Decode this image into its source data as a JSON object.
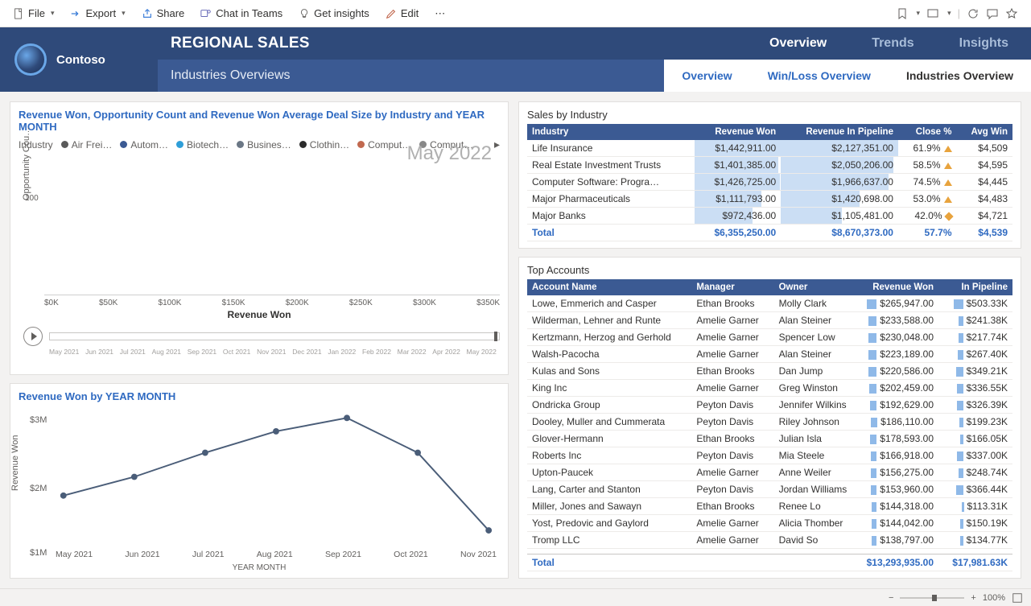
{
  "toolbar": {
    "file": "File",
    "export": "Export",
    "share": "Share",
    "chat": "Chat in Teams",
    "insights": "Get insights",
    "edit": "Edit"
  },
  "brand": "Contoso",
  "page_title": "REGIONAL SALES",
  "subtitle": "Industries Overviews",
  "nav_tabs": [
    "Overview",
    "Trends",
    "Insights"
  ],
  "nav_active": 0,
  "sub_tabs": [
    "Overview",
    "Win/Loss Overview",
    "Industries Overview"
  ],
  "sub_active": 2,
  "scatter": {
    "title": "Revenue Won, Opportunity Count and Revenue Won Average Deal Size by Industry and YEAR MONTH",
    "legend_label": "Industry",
    "legend": [
      {
        "label": "Air Frei…",
        "color": "#5a5a5a"
      },
      {
        "label": "Autom…",
        "color": "#3b5a93"
      },
      {
        "label": "Biotech…",
        "color": "#2f9ed8"
      },
      {
        "label": "Busines…",
        "color": "#6b7785"
      },
      {
        "label": "Clothin…",
        "color": "#2b2b2b"
      },
      {
        "label": "Comput…",
        "color": "#c1694f"
      },
      {
        "label": "Comput…",
        "color": "#888888"
      }
    ],
    "watermark": "May 2022",
    "yaxis": "Opportunity Cou…",
    "yticks": [
      {
        "v": 100,
        "pos": 30
      }
    ],
    "xaxis": "Revenue Won",
    "xticks": [
      "$0K",
      "$50K",
      "$100K",
      "$150K",
      "$200K",
      "$250K",
      "$300K",
      "$350K"
    ],
    "timeline": [
      "May 2021",
      "Jun 2021",
      "Jul 2021",
      "Aug 2021",
      "Sep 2021",
      "Oct 2021",
      "Nov 2021",
      "Dec 2021",
      "Jan 2022",
      "Feb 2022",
      "Mar 2022",
      "Apr 2022",
      "May 2022"
    ]
  },
  "line": {
    "title": "Revenue Won by YEAR MONTH",
    "yaxis": "Revenue Won",
    "yticks": [
      {
        "label": "$3M",
        "y": 10
      },
      {
        "label": "$2M",
        "y": 95
      },
      {
        "label": "$1M",
        "y": 175
      }
    ],
    "xaxis": "YEAR MONTH",
    "categories": [
      "May 2021",
      "Jun 2021",
      "Jul 2021",
      "Aug 2021",
      "Sep 2021",
      "Oct 2021",
      "Nov 2021"
    ],
    "values": [
      1.35,
      1.7,
      2.15,
      2.55,
      2.8,
      2.15,
      0.7
    ],
    "ylim": [
      0.5,
      3.0
    ],
    "color": "#4a5d78",
    "marker_color": "#4a5d78"
  },
  "industry_table": {
    "title": "Sales by Industry",
    "columns": [
      "Industry",
      "Revenue Won",
      "Revenue In Pipeline",
      "Close %",
      "Avg Win"
    ],
    "rows": [
      {
        "industry": "Life Insurance",
        "won": "$1,442,911.00",
        "won_pct": 100,
        "pipe": "$2,127,351.00",
        "pipe_pct": 100,
        "close": "61.9%",
        "icon": "tri",
        "avg": "$4,509"
      },
      {
        "industry": "Real Estate Investment Trusts",
        "won": "$1,401,385.00",
        "won_pct": 97,
        "pipe": "$2,050,206.00",
        "pipe_pct": 96,
        "close": "58.5%",
        "icon": "tri",
        "avg": "$4,595"
      },
      {
        "industry": "Computer Software: Progra…",
        "won": "$1,426,725.00",
        "won_pct": 99,
        "pipe": "$1,966,637.00",
        "pipe_pct": 92,
        "close": "74.5%",
        "icon": "tri",
        "avg": "$4,445"
      },
      {
        "industry": "Major Pharmaceuticals",
        "won": "$1,111,793.00",
        "won_pct": 77,
        "pipe": "$1,420,698.00",
        "pipe_pct": 67,
        "close": "53.0%",
        "icon": "tri",
        "avg": "$4,483"
      },
      {
        "industry": "Major Banks",
        "won": "$972,436.00",
        "won_pct": 67,
        "pipe": "$1,105,481.00",
        "pipe_pct": 52,
        "close": "42.0%",
        "icon": "diamond",
        "avg": "$4,721"
      }
    ],
    "total": {
      "label": "Total",
      "won": "$6,355,250.00",
      "pipe": "$8,670,373.00",
      "close": "57.7%",
      "avg": "$4,539"
    }
  },
  "accounts_table": {
    "title": "Top Accounts",
    "columns": [
      "Account Name",
      "Manager",
      "Owner",
      "Revenue Won",
      "In Pipeline"
    ],
    "rows": [
      {
        "name": "Lowe, Emmerich and Casper",
        "mgr": "Ethan Brooks",
        "owner": "Molly Clark",
        "won": "$265,947.00",
        "won_pct": 100,
        "pipe": "$503.33K",
        "pipe_pct": 100
      },
      {
        "name": "Wilderman, Lehner and Runte",
        "mgr": "Amelie Garner",
        "owner": "Alan Steiner",
        "won": "$233,588.00",
        "won_pct": 88,
        "pipe": "$241.38K",
        "pipe_pct": 48
      },
      {
        "name": "Kertzmann, Herzog and Gerhold",
        "mgr": "Amelie Garner",
        "owner": "Spencer Low",
        "won": "$230,048.00",
        "won_pct": 87,
        "pipe": "$217.74K",
        "pipe_pct": 43
      },
      {
        "name": "Walsh-Pacocha",
        "mgr": "Amelie Garner",
        "owner": "Alan Steiner",
        "won": "$223,189.00",
        "won_pct": 84,
        "pipe": "$267.40K",
        "pipe_pct": 53
      },
      {
        "name": "Kulas and Sons",
        "mgr": "Ethan Brooks",
        "owner": "Dan Jump",
        "won": "$220,586.00",
        "won_pct": 83,
        "pipe": "$349.21K",
        "pipe_pct": 69
      },
      {
        "name": "King Inc",
        "mgr": "Amelie Garner",
        "owner": "Greg Winston",
        "won": "$202,459.00",
        "won_pct": 76,
        "pipe": "$336.55K",
        "pipe_pct": 67
      },
      {
        "name": "Ondricka Group",
        "mgr": "Peyton Davis",
        "owner": "Jennifer Wilkins",
        "won": "$192,629.00",
        "won_pct": 72,
        "pipe": "$326.39K",
        "pipe_pct": 65
      },
      {
        "name": "Dooley, Muller and Cummerata",
        "mgr": "Peyton Davis",
        "owner": "Riley Johnson",
        "won": "$186,110.00",
        "won_pct": 70,
        "pipe": "$199.23K",
        "pipe_pct": 40
      },
      {
        "name": "Glover-Hermann",
        "mgr": "Ethan Brooks",
        "owner": "Julian Isla",
        "won": "$178,593.00",
        "won_pct": 67,
        "pipe": "$166.05K",
        "pipe_pct": 33
      },
      {
        "name": "Roberts Inc",
        "mgr": "Peyton Davis",
        "owner": "Mia Steele",
        "won": "$166,918.00",
        "won_pct": 63,
        "pipe": "$337.00K",
        "pipe_pct": 67
      },
      {
        "name": "Upton-Paucek",
        "mgr": "Amelie Garner",
        "owner": "Anne Weiler",
        "won": "$156,275.00",
        "won_pct": 59,
        "pipe": "$248.74K",
        "pipe_pct": 49
      },
      {
        "name": "Lang, Carter and Stanton",
        "mgr": "Peyton Davis",
        "owner": "Jordan Williams",
        "won": "$153,960.00",
        "won_pct": 58,
        "pipe": "$366.44K",
        "pipe_pct": 73
      },
      {
        "name": "Miller, Jones and Sawayn",
        "mgr": "Ethan Brooks",
        "owner": "Renee Lo",
        "won": "$144,318.00",
        "won_pct": 54,
        "pipe": "$113.31K",
        "pipe_pct": 23
      },
      {
        "name": "Yost, Predovic and Gaylord",
        "mgr": "Amelie Garner",
        "owner": "Alicia Thomber",
        "won": "$144,042.00",
        "won_pct": 54,
        "pipe": "$150.19K",
        "pipe_pct": 30
      },
      {
        "name": "Tromp LLC",
        "mgr": "Amelie Garner",
        "owner": "David So",
        "won": "$138,797.00",
        "won_pct": 52,
        "pipe": "$134.77K",
        "pipe_pct": 27
      }
    ],
    "total": {
      "label": "Total",
      "won": "$13,293,935.00",
      "pipe": "$17,981.63K"
    }
  },
  "footer": {
    "zoom": "100%"
  },
  "colors": {
    "header_bg": "#2f4a7a",
    "header_sub": "#3b5a93",
    "accent": "#2f6ac1",
    "bar_fill": "#a0c3eb"
  }
}
